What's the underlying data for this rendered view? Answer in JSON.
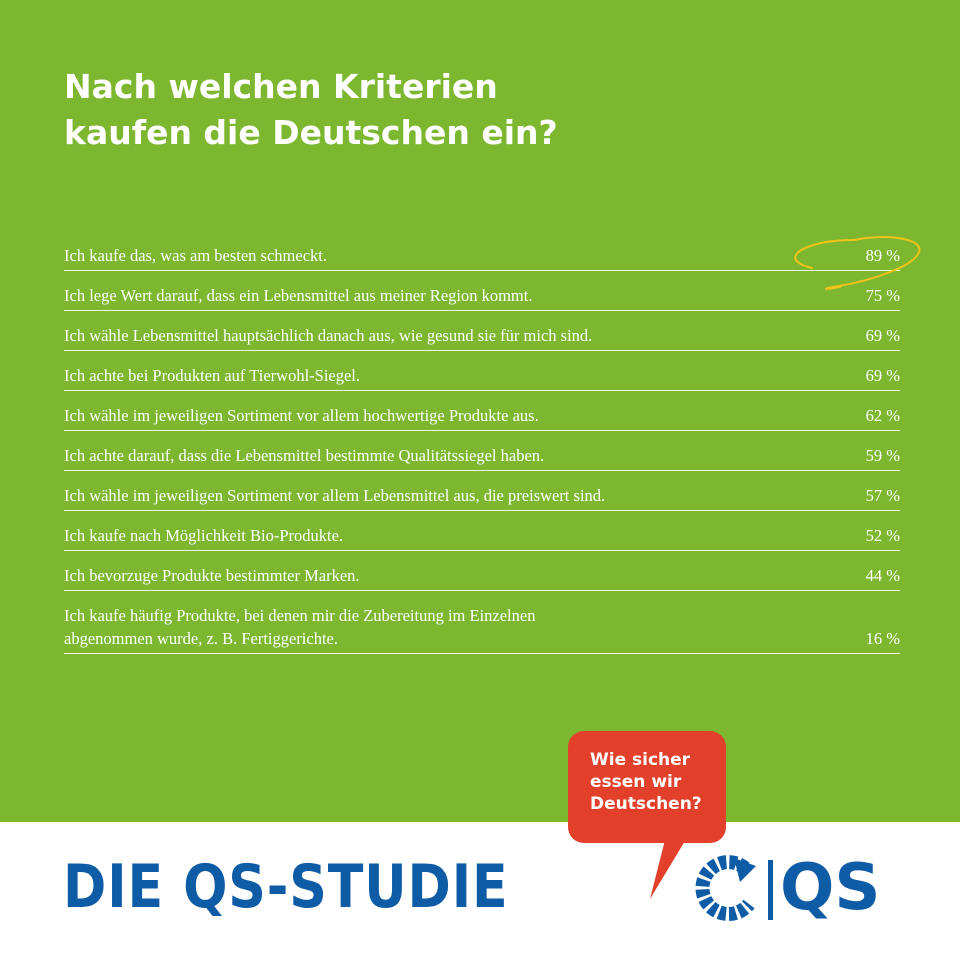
{
  "title_lines": [
    "Nach welchen Kriterien",
    "kaufen die Deutschen ein?"
  ],
  "chart_data": {
    "type": "table",
    "rows": [
      {
        "label_lines": [
          "Ich kaufe das, was am besten schmeckt."
        ],
        "value": "89 %",
        "highlight": true
      },
      {
        "label_lines": [
          "Ich lege Wert darauf, dass ein Lebensmittel aus meiner Region kommt."
        ],
        "value": "75 %"
      },
      {
        "label_lines": [
          "Ich wähle Lebensmittel hauptsächlich danach aus, wie gesund sie für mich sind."
        ],
        "value": "69 %"
      },
      {
        "label_lines": [
          "Ich achte bei Produkten auf Tierwohl-Siegel."
        ],
        "value": "69 %"
      },
      {
        "label_lines": [
          "Ich wähle im jeweiligen Sortiment vor allem hochwertige Produkte aus."
        ],
        "value": "62 %"
      },
      {
        "label_lines": [
          "Ich achte darauf, dass die Lebensmittel bestimmte Qualitätssiegel haben."
        ],
        "value": "59 %"
      },
      {
        "label_lines": [
          "Ich wähle im jeweiligen Sortiment vor allem Lebensmittel aus, die preiswert sind."
        ],
        "value": "57 %"
      },
      {
        "label_lines": [
          "Ich kaufe nach Möglichkeit Bio-Produkte."
        ],
        "value": "52 %"
      },
      {
        "label_lines": [
          "Ich bevorzuge Produkte bestimmter Marken."
        ],
        "value": "44 %"
      },
      {
        "label_lines": [
          "Ich kaufe häufig Produkte, bei denen mir die Zubereitung im Einzelnen",
          "abgenommen wurde, z. B. Fertiggerichte."
        ],
        "value": "16 %"
      }
    ]
  },
  "footer": {
    "study_title": "DIE QS-STUDIE",
    "bubble_lines": [
      "Wie sicher",
      "essen wir",
      "Deutschen?"
    ],
    "logo_text": "QS"
  },
  "colors": {
    "background_green": "#7cb72f",
    "highlight_yellow": "#f2c318",
    "brand_blue": "#0f5ca6",
    "bubble_red": "#e2402b"
  }
}
